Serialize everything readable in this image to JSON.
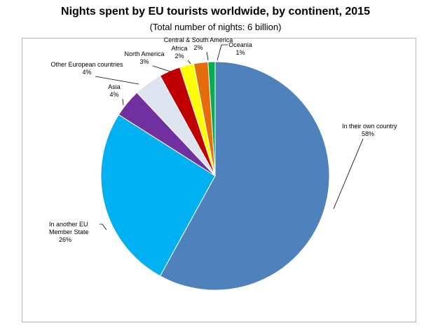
{
  "chart_data": {
    "type": "pie",
    "title": "Nights spent by EU tourists worldwide, by continent, 2015",
    "subtitle": "(Total number of nights: 6 billion)",
    "start": "top",
    "direction": "clockwise",
    "slices": [
      {
        "label": "In their own country",
        "value": 58,
        "value_label": "58%",
        "color": "#4f81bd"
      },
      {
        "label": "In another EU Member State",
        "value": 26,
        "value_label": "26%",
        "color": "#00b0f0"
      },
      {
        "label": "Asia",
        "value": 4,
        "value_label": "4%",
        "color": "#7030a0"
      },
      {
        "label": "Other European countries",
        "value": 4,
        "value_label": "4%",
        "color": "#dde4f0"
      },
      {
        "label": "North America",
        "value": 3,
        "value_label": "3%",
        "color": "#c00000"
      },
      {
        "label": "Africa",
        "value": 2,
        "value_label": "2%",
        "color": "#ffff00"
      },
      {
        "label": "Central & South America",
        "value": 2,
        "value_label": "2%",
        "color": "#e46c0a"
      },
      {
        "label": "Oceania",
        "value": 1,
        "value_label": "1%",
        "color": "#00b050"
      }
    ]
  }
}
